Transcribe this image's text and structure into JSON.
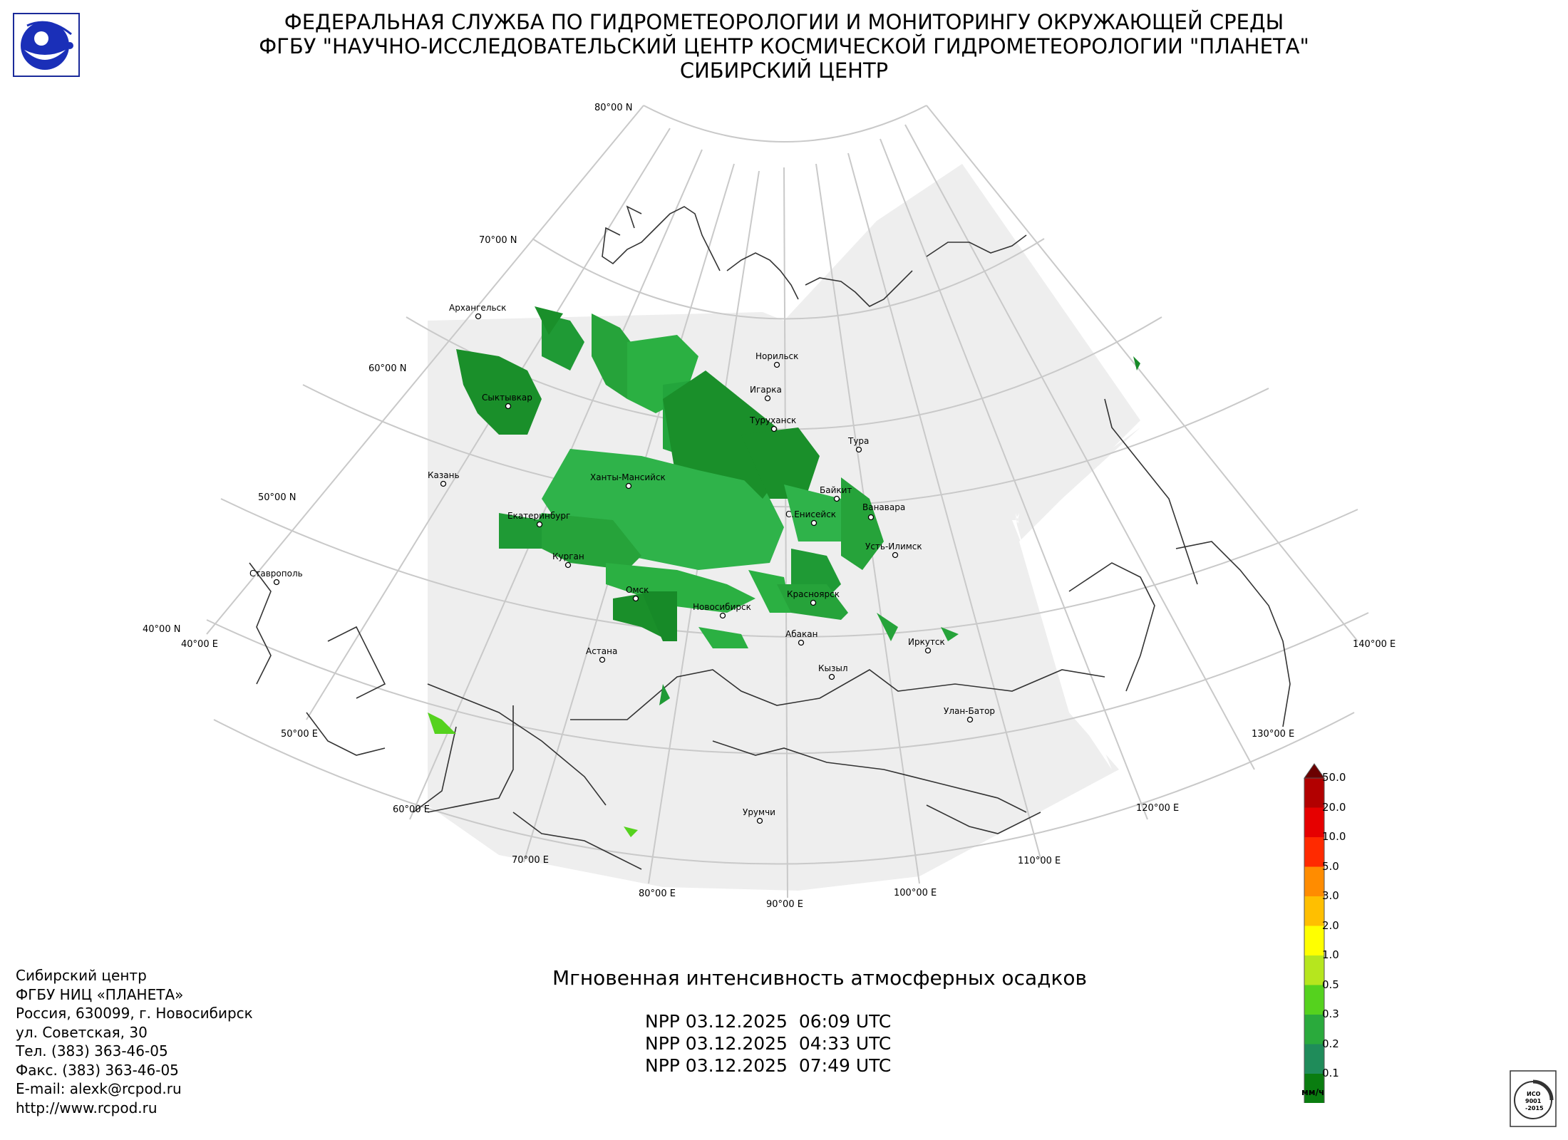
{
  "header": {
    "line1": "ФЕДЕРАЛЬНАЯ СЛУЖБА ПО ГИДРОМЕТЕОРОЛОГИИ И МОНИТОРИНГУ ОКРУЖАЮЩЕЙ СРЕДЫ",
    "line2": "ФГБУ \"НАУЧНО-ИССЛЕДОВАТЕЛЬСКИЙ ЦЕНТР КОСМИЧЕСКОЙ ГИДРОМЕТЕОРОЛОГИИ \"ПЛАНЕТА\"",
    "line3": "СИБИРСКИЙ ЦЕНТР"
  },
  "grid_labels": {
    "lat80": "80°00 N",
    "lat70": "70°00 N",
    "lat60": "60°00 N",
    "lat50": "50°00 N",
    "lat40": "40°00 N",
    "lon40": "40°00 E",
    "lon50": "50°00 E",
    "lon60": "60°00 E",
    "lon70": "70°00 E",
    "lon80": "80°00 E",
    "lon90": "90°00 E",
    "lon100": "100°00 E",
    "lon110": "110°00 E",
    "lon120": "120°00 E",
    "lon130": "130°00 E",
    "lon140": "140°00 E"
  },
  "cities": {
    "arkhangelsk": "Архангельск",
    "syktyvkar": "Сыктывкар",
    "kazan": "Казань",
    "yekaterinburg": "Екатеринбург",
    "kurgan": "Курган",
    "stavropol": "Ставрополь",
    "khanty": "Ханты-Мансийск",
    "omsk": "Омск",
    "astana": "Астана",
    "novosibirsk": "Новосибирск",
    "norilsk": "Норильск",
    "igarka": "Игарка",
    "turukhansk": "Туруханск",
    "tura": "Тура",
    "baykit": "Байкит",
    "vanavara": "Ванавара",
    "s_yeniseysk": "С.Енисейск",
    "ust_ilimsk": "Усть-Илимск",
    "krasnoyarsk": "Красноярск",
    "abakan": "Абакан",
    "kyzyl": "Кызыл",
    "irkutsk": "Иркутск",
    "ulaanbaatar": "Улан-Батор",
    "urumqi": "Урумчи"
  },
  "info": {
    "line1": "Сибирский центр",
    "line2": "ФГБУ НИЦ «ПЛАНЕТА»",
    "line3": "Россия, 630099, г. Новосибирск",
    "line4": "ул. Советская, 30",
    "line5": "Тел. (383) 363-46-05",
    "line6": "Факс. (383) 363-46-05",
    "line7": "E-mail: alexk@rcpod.ru",
    "line8": "http://www.rcpod.ru"
  },
  "title": "Мгновенная интенсивность атмосферных осадков",
  "passes": [
    "NPP 03.12.2025  06:09 UTC",
    "NPP 03.12.2025  04:33 UTC",
    "NPP 03.12.2025  07:49 UTC"
  ],
  "legend": {
    "labels": [
      "50.0",
      "20.0",
      "10.0",
      "5.0",
      "3.0",
      "2.0",
      "1.0",
      "0.5",
      "0.3",
      "0.2",
      "0.1"
    ],
    "colors": [
      "#b20000",
      "#e60000",
      "#ff2a00",
      "#ff8c00",
      "#ffbf00",
      "#ffff00",
      "#b6e61e",
      "#55d21e",
      "#2aaa3c",
      "#1f8c5a",
      "#0a7d10"
    ],
    "top_color": "#6b0000",
    "bottom_color": "#c8c8c8",
    "unit": "мм/ч"
  },
  "iso_badge": {
    "line1": "ИСО",
    "line2": "9001",
    "line3": "-2015"
  }
}
